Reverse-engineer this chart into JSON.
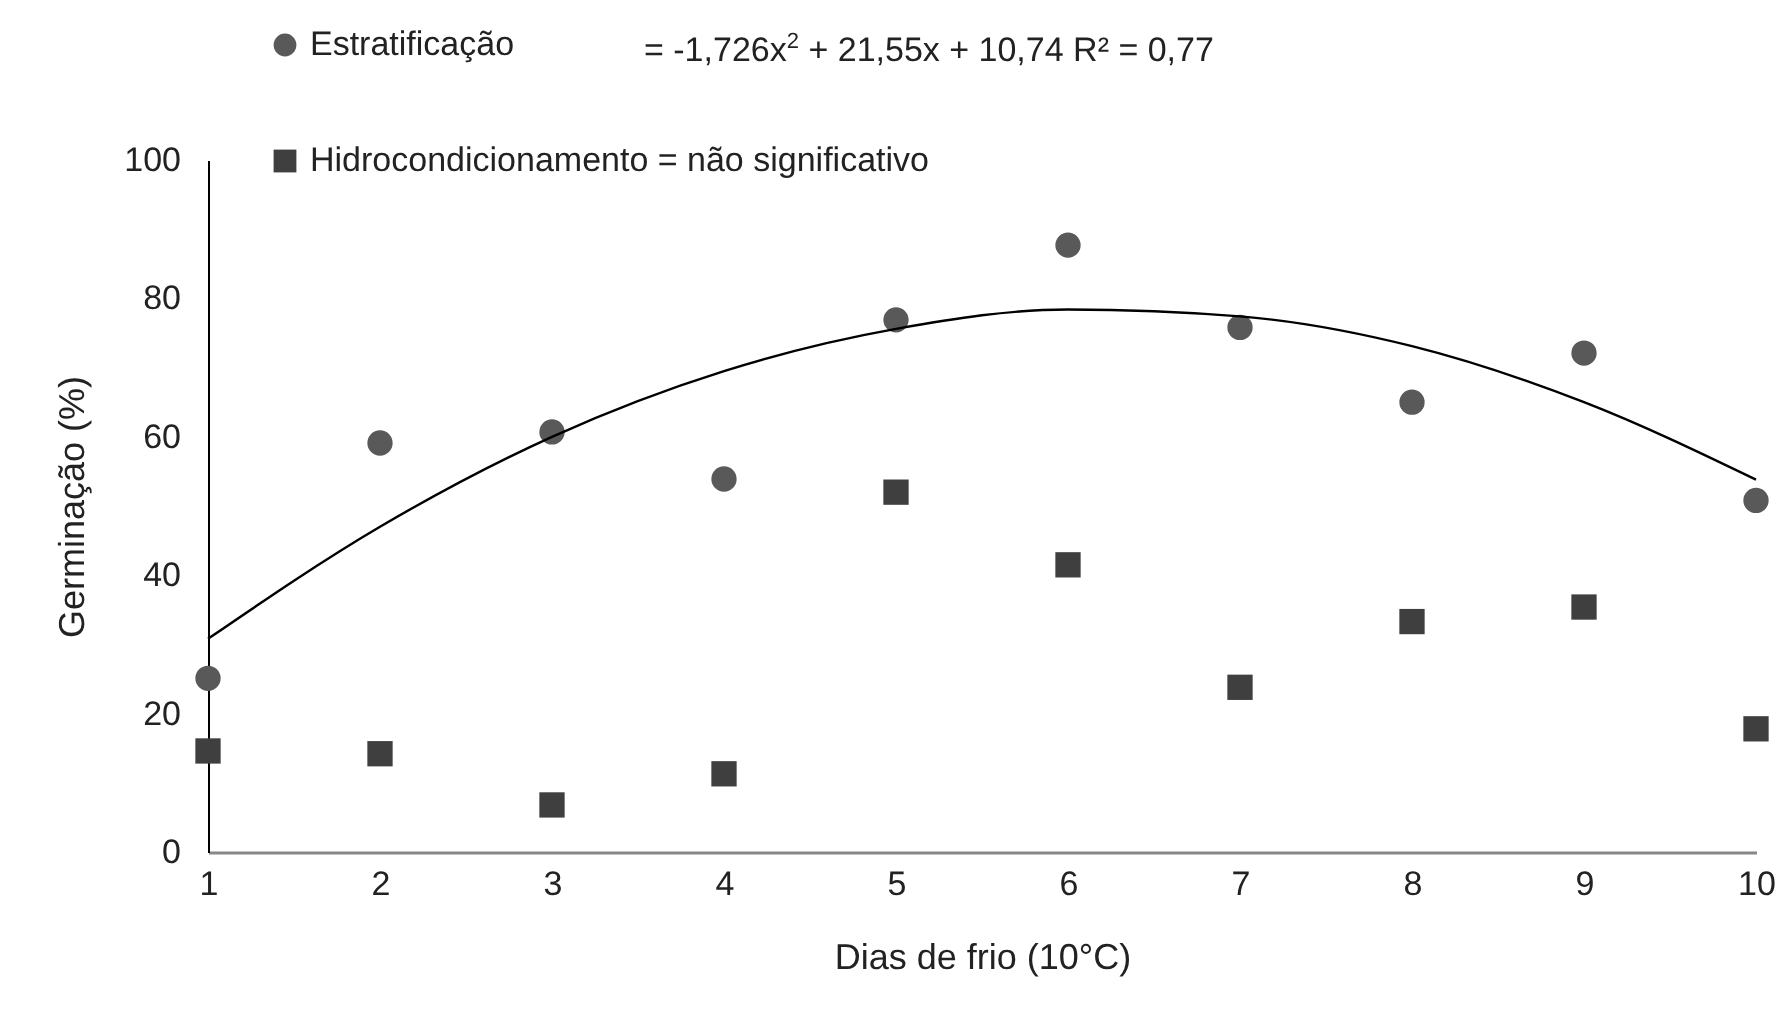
{
  "chart_data": {
    "type": "scatter",
    "xlabel": "Dias de frio (10°C)",
    "ylabel": "Germinação (%)",
    "x": [
      1,
      2,
      3,
      4,
      5,
      6,
      7,
      8,
      9,
      10
    ],
    "series": [
      {
        "name": "Estratificação",
        "color": "#595959",
        "marker": "circle",
        "values": [
          25.1,
          59.1,
          60.7,
          53.9,
          76.9,
          87.7,
          75.8,
          65.0,
          72.1,
          50.8
        ]
      },
      {
        "name": "Hidrocondicionamento = não significativo",
        "color": "#3f3f3f",
        "marker": "square",
        "values": [
          14.6,
          14.2,
          6.8,
          11.3,
          52.0,
          41.5,
          23.8,
          33.3,
          35.4,
          17.8
        ]
      },
      {
        "type": "line",
        "color": "#000000",
        "marker": "none",
        "x": [
          1,
          2,
          3,
          4,
          5,
          6,
          7,
          8,
          9,
          10
        ],
        "values": [
          30.8,
          47.0,
          60.0,
          69.5,
          75.6,
          78.4,
          77.4,
          73.1,
          65.0,
          53.8
        ]
      }
    ],
    "annotations": [
      "= -1,726x$^{2}$ + 21,55x + 10,74  R² = 0,77"
    ],
    "xlim": [
      1,
      10
    ],
    "xticks": [
      1,
      2,
      3,
      4,
      5,
      6,
      7,
      8,
      9,
      10
    ],
    "ylim": [
      0,
      100
    ],
    "yticks": [
      0,
      20,
      40,
      60,
      80,
      100
    ],
    "legend": "top left",
    "grid": false
  }
}
